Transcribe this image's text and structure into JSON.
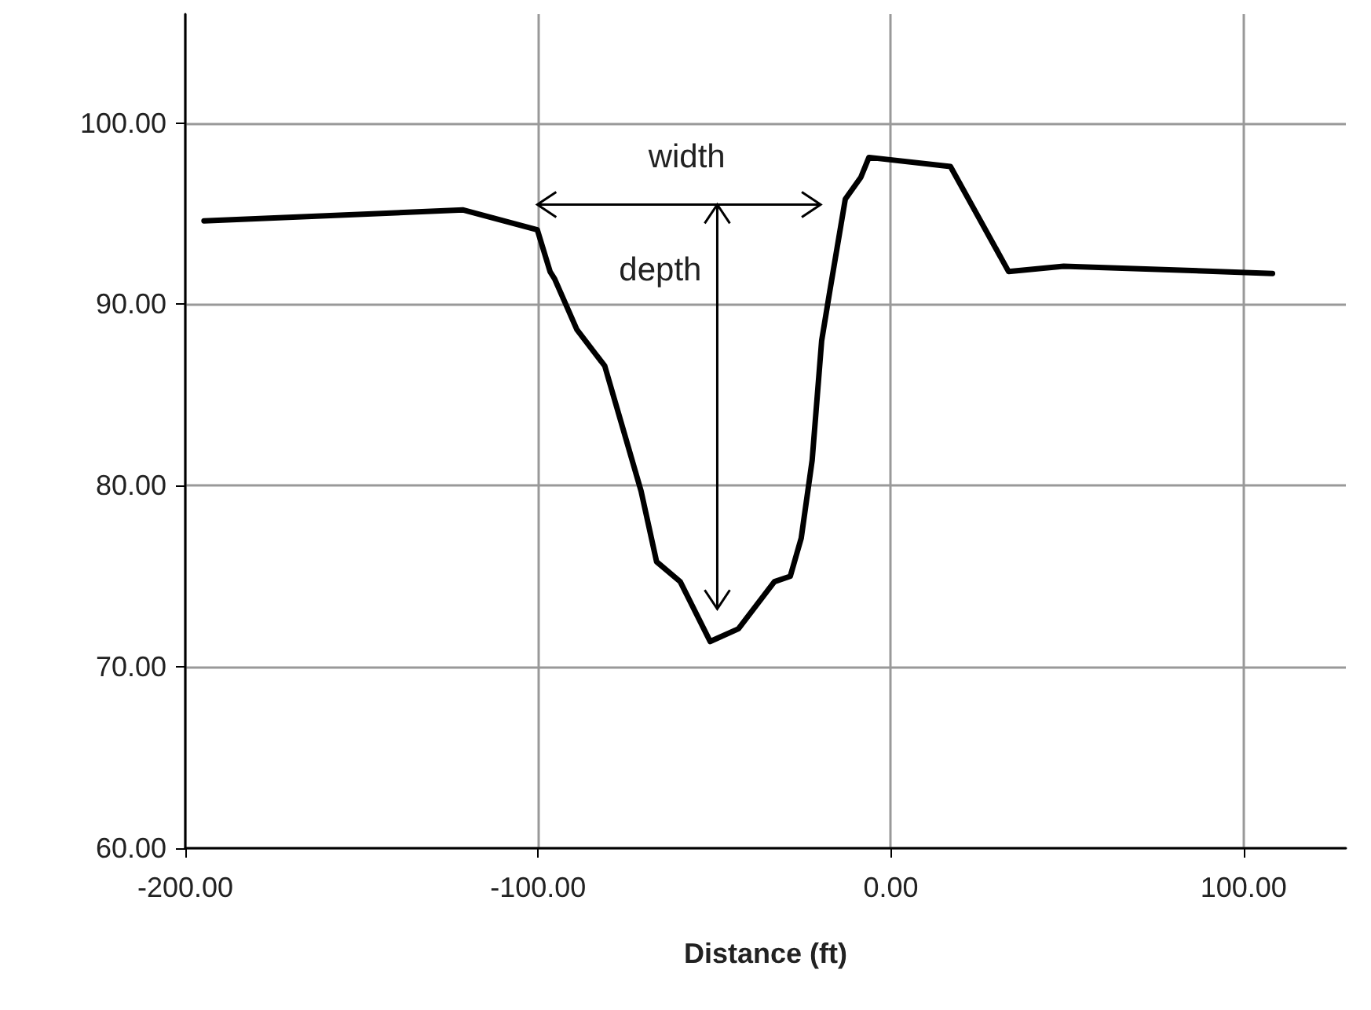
{
  "chart_data": {
    "type": "line",
    "xlabel": "Distance (ft)",
    "x": [
      -194.7,
      -121.2,
      -100.2,
      -96.6,
      -95.3,
      -89.0,
      -81.1,
      -70.8,
      -66.4,
      -59.7,
      -51.2,
      -43.2,
      -33.0,
      -28.5,
      -25.4,
      -22.3,
      -19.6,
      -17.4,
      -12.9,
      -8.5,
      -6.2,
      16.9,
      33.4,
      49.0,
      108.2
    ],
    "series": [
      {
        "color": "#000000",
        "values": [
          94.6,
          95.2,
          94.1,
          91.8,
          91.4,
          88.6,
          86.6,
          79.7,
          75.8,
          74.7,
          71.4,
          72.1,
          74.7,
          75.0,
          77.1,
          81.4,
          88.0,
          90.6,
          95.8,
          97.0,
          98.1,
          97.6,
          91.8,
          92.1,
          91.7
        ]
      }
    ],
    "xlim": [
      -200,
      129
    ],
    "xticks": [
      {
        "value": -200,
        "label": "-200.00"
      },
      {
        "value": -100,
        "label": "-100.00"
      },
      {
        "value": 0,
        "label": "0.00"
      },
      {
        "value": 100,
        "label": "100.00"
      }
    ],
    "ylim": [
      60,
      106
    ],
    "yticks": [
      {
        "value": 60,
        "label": "60.00"
      },
      {
        "value": 70,
        "label": "70.00"
      },
      {
        "value": 80,
        "label": "80.00"
      },
      {
        "value": 90,
        "label": "90.00"
      },
      {
        "value": 100,
        "label": "100.00"
      }
    ],
    "annotations": [
      "width",
      "depth"
    ],
    "grid": true,
    "legend": false,
    "marker": "none",
    "line_style": "solid"
  }
}
